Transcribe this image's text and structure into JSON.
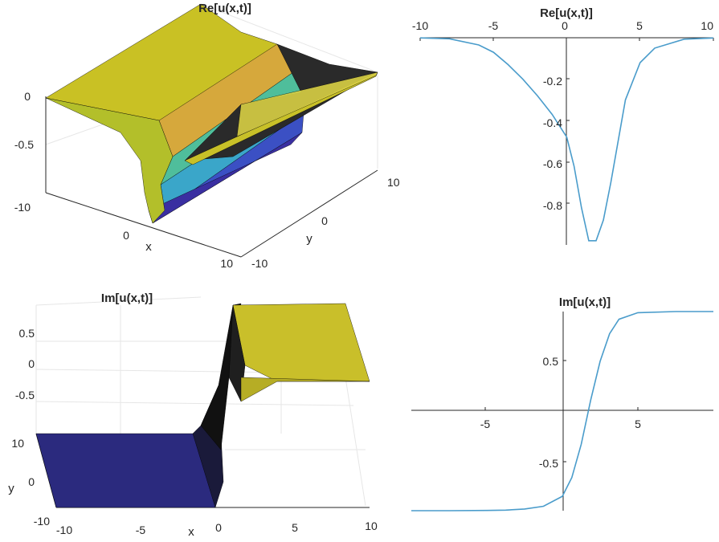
{
  "chart_data": [
    {
      "type": "surface",
      "title": "Re[u(x,t)]",
      "xlabel": "x",
      "ylabel": "y",
      "zlabel": "",
      "xlim": [
        -10,
        10
      ],
      "ylim": [
        -10,
        10
      ],
      "zlim": [
        -1,
        0
      ],
      "x_ticks": [
        "-10",
        "0",
        "10"
      ],
      "y_ticks": [
        "-10",
        "0",
        "10"
      ],
      "z_ticks": [
        "-0.5",
        "0"
      ],
      "grid": true,
      "colormap": "parula",
      "trough_depth": -1,
      "trough_center_x": 1.5
    },
    {
      "type": "line",
      "title": "Re[u(x,t)]",
      "x": [
        -10,
        -8,
        -6,
        -5,
        -4,
        -3,
        -2,
        -1,
        0,
        0.5,
        1,
        1.5,
        2,
        2.5,
        3,
        4,
        5,
        6,
        8,
        10
      ],
      "y": [
        -0.0007,
        -0.005,
        -0.035,
        -0.07,
        -0.13,
        -0.2,
        -0.28,
        -0.37,
        -0.48,
        -0.62,
        -0.82,
        -0.98,
        -0.98,
        -0.88,
        -0.7,
        -0.3,
        -0.12,
        -0.05,
        -0.007,
        -0.001
      ],
      "xlim": [
        -10,
        10
      ],
      "ylim": [
        -1,
        0
      ],
      "x_ticks": [
        "-10",
        "-5",
        "0",
        "5",
        "10"
      ],
      "y_ticks": [
        "-0.8",
        "-0.6",
        "-0.4",
        "-0.2"
      ],
      "axis_location": "origin",
      "color": "#4A9CCB"
    },
    {
      "type": "surface",
      "title": "Im[u(x,t)]",
      "xlabel": "x",
      "ylabel": "y",
      "zlabel": "",
      "xlim": [
        -10,
        10
      ],
      "ylim": [
        -10,
        10
      ],
      "zlim": [
        -1,
        1
      ],
      "x_ticks": [
        "-10",
        "-5",
        "0",
        "5",
        "10"
      ],
      "y_ticks": [
        "-10",
        "0",
        "10"
      ],
      "z_ticks": [
        "-0.5",
        "0",
        "0.5"
      ],
      "grid": true,
      "colormap": "parula"
    },
    {
      "type": "line",
      "title": "Im[u(x,t)]",
      "x": [
        -10,
        -6,
        -4,
        -3,
        -2,
        -1,
        0,
        0.5,
        1,
        1.5,
        2,
        2.5,
        3,
        4,
        6,
        10
      ],
      "y": [
        -0.9,
        -0.9,
        -0.898,
        -0.895,
        -0.885,
        -0.86,
        -0.77,
        -0.6,
        -0.3,
        0.1,
        0.45,
        0.7,
        0.83,
        0.89,
        0.9,
        0.9
      ],
      "xlim": [
        -8,
        8
      ],
      "ylim": [
        -0.9,
        0.9
      ],
      "x_ticks": [
        "-5",
        "5"
      ],
      "y_ticks": [
        "-0.5",
        "0.5"
      ],
      "axis_location": "origin",
      "color": "#4A9CCB"
    }
  ]
}
